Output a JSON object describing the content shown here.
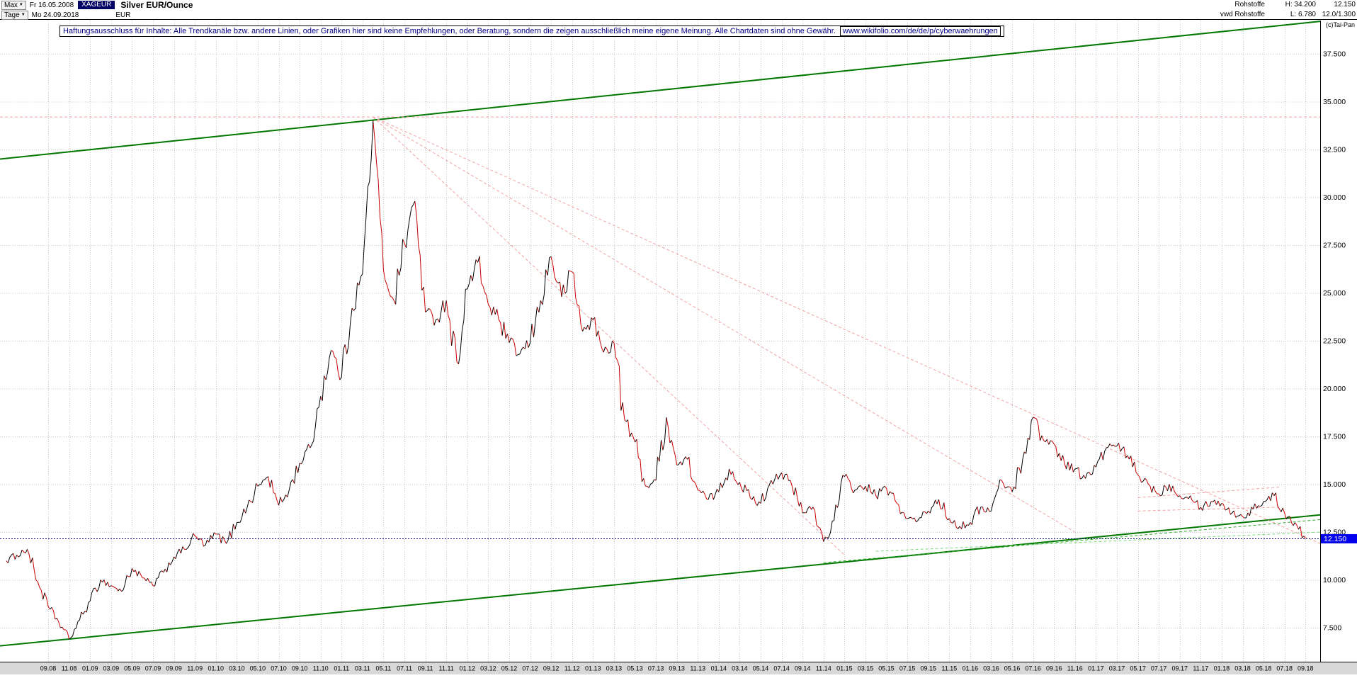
{
  "header": {
    "range_button": "Max",
    "period_button": "Tage",
    "date_from": "Fr 16.05.2008",
    "date_to": "Mo 24.09.2018",
    "symbol": "XAGEUR",
    "currency": "EUR",
    "title": "Silver EUR/Ounce",
    "category": "Rohstoffe",
    "source": "vwd Rohstoffe",
    "high_label": "H: 34.200",
    "low_label": "L: 6.780",
    "last_price": "12.150",
    "change": "12.0/1.300"
  },
  "disclaimer": {
    "text": "Haftungsausschluss für Inhalte: Alle Trendkanäle bzw. andere Linien, oder Grafiken hier sind keine Empfehlungen, oder Beratung, sondern die zeigen ausschließlich meine eigene Meinung. Alle Chartdaten sind ohne Gewähr.",
    "url": "www.wikifolio.com/de/de/p/cyberwaehrungen"
  },
  "watermark": "(c)Tai-Pan",
  "chart_data": {
    "type": "line",
    "title": "Silver EUR/Ounce",
    "symbol": "XAGEUR",
    "unit": "EUR per ounce",
    "x_start": "2008-05",
    "x_end": "2018-09",
    "x_resolution": "monthly approximation of a daily chart",
    "high": 34.2,
    "low": 6.78,
    "last": 12.15,
    "last_label": "12.150",
    "y_axis": {
      "min": 5.7,
      "max": 39.3,
      "ticks": [
        37.5,
        35,
        32.5,
        30,
        27.5,
        25,
        22.5,
        20,
        17.5,
        15,
        12.5,
        10,
        7.5
      ],
      "tick_labels": [
        "37.500",
        "35.000",
        "32.500",
        "30.000",
        "27.500",
        "25.000",
        "22.500",
        "20.000",
        "17.500",
        "15.000",
        "12.500",
        "10.000",
        "7.500"
      ]
    },
    "x_axis": {
      "tick_start_index": 4,
      "tick_step": 2,
      "tick_labels": [
        "09.08",
        "11.08",
        "01.09",
        "03.09",
        "05.09",
        "07.09",
        "09.09",
        "11.09",
        "01.10",
        "03.10",
        "05.10",
        "07.10",
        "09.10",
        "11.10",
        "01.11",
        "03.11",
        "05.11",
        "07.11",
        "09.11",
        "11.11",
        "01.12",
        "03.12",
        "05.12",
        "07.12",
        "09.12",
        "11.12",
        "01.13",
        "03.13",
        "05.13",
        "07.13",
        "09.13",
        "11.13",
        "01.14",
        "03.14",
        "05.14",
        "07.14",
        "09.14",
        "11.14",
        "01.15",
        "03.15",
        "05.15",
        "07.15",
        "09.15",
        "11.15",
        "01.16",
        "03.16",
        "05.16",
        "07.16",
        "09.16",
        "11.16",
        "01.17",
        "03.17",
        "05.17",
        "07.17",
        "09.17",
        "11.17",
        "01.18",
        "03.18",
        "05.18",
        "07.18",
        "09.18"
      ]
    },
    "series": [
      {
        "name": "XAGEUR monthly close (approx, read from chart)",
        "values": [
          11.0,
          11.3,
          11.6,
          9.9,
          8.6,
          7.8,
          6.9,
          7.9,
          8.9,
          10.0,
          9.7,
          9.4,
          10.6,
          10.1,
          9.7,
          10.4,
          11.2,
          11.6,
          12.3,
          11.8,
          12.4,
          11.9,
          13.0,
          13.8,
          14.9,
          15.4,
          13.9,
          14.7,
          16.1,
          16.9,
          19.6,
          22.0,
          20.6,
          24.2,
          26.0,
          34.0,
          26.2,
          24.6,
          27.6,
          29.8,
          24.0,
          23.6,
          24.6,
          21.4,
          25.2,
          26.6,
          24.4,
          23.6,
          22.4,
          21.8,
          22.4,
          24.6,
          26.9,
          24.8,
          26.1,
          23.0,
          23.6,
          21.9,
          22.4,
          18.4,
          17.2,
          14.9,
          15.2,
          18.5,
          16.0,
          16.3,
          14.7,
          14.2,
          14.6,
          15.8,
          15.1,
          14.3,
          14.0,
          15.2,
          15.6,
          14.9,
          13.5,
          13.8,
          12.0,
          13.1,
          15.4,
          14.7,
          14.9,
          14.4,
          14.8,
          14.0,
          13.2,
          13.1,
          13.6,
          14.2,
          13.2,
          12.8,
          13.0,
          13.8,
          13.6,
          15.2,
          14.6,
          16.3,
          18.5,
          17.3,
          17.1,
          16.1,
          15.8,
          15.3,
          15.9,
          16.9,
          17.0,
          16.5,
          15.5,
          15.0,
          14.5,
          15.0,
          14.4,
          14.4,
          13.8,
          14.1,
          14.0,
          13.5,
          13.3,
          13.7,
          14.1,
          14.4,
          13.5,
          13.0,
          12.15
        ]
      }
    ],
    "trendlines": [
      {
        "name": "upper-green-channel",
        "m1": -0.6,
        "p1": 32.0,
        "m2": 125.4,
        "p2": 39.2,
        "color": "#007700",
        "width": 2,
        "dash": ""
      },
      {
        "name": "lower-green-channel",
        "m1": -0.6,
        "p1": 6.55,
        "m2": 125.4,
        "p2": 13.4,
        "color": "#007700",
        "width": 2,
        "dash": ""
      },
      {
        "name": "all-time-high-line",
        "m1": -0.6,
        "p1": 34.2,
        "m2": 125.4,
        "p2": 34.2,
        "color": "#f2a2a2",
        "width": 1,
        "dash": "4 3"
      },
      {
        "name": "red-fan-shallow",
        "m1": 35,
        "p1": 34.2,
        "m2": 125.4,
        "p2": 11.9,
        "color": "#f2a2a2",
        "width": 1,
        "dash": "4 3"
      },
      {
        "name": "red-fan-middle",
        "m1": 35,
        "p1": 34.2,
        "m2": 102,
        "p2": 12.5,
        "color": "#f2a2a2",
        "width": 1,
        "dash": "4 3"
      },
      {
        "name": "red-fan-steep",
        "m1": 35,
        "p1": 34.2,
        "m2": 80,
        "p2": 11.3,
        "color": "#f2a2a2",
        "width": 1,
        "dash": "4 3"
      },
      {
        "name": "green-support-1",
        "m1": 78,
        "p1": 10.9,
        "m2": 125.4,
        "p2": 13.15,
        "color": "#33aa33",
        "width": 1,
        "dash": "4 3"
      },
      {
        "name": "green-support-2",
        "m1": 83,
        "p1": 11.5,
        "m2": 125.4,
        "p2": 12.5,
        "color": "#7ed87e",
        "width": 1,
        "dash": "4 3"
      },
      {
        "name": "red-resistance-1",
        "m1": 108,
        "p1": 14.3,
        "m2": 121.5,
        "p2": 14.85,
        "color": "#f2a2a2",
        "width": 1,
        "dash": "4 3"
      },
      {
        "name": "red-resistance-2",
        "m1": 108,
        "p1": 13.6,
        "m2": 121.5,
        "p2": 13.8,
        "color": "#f2a2a2",
        "width": 1,
        "dash": "4 3"
      },
      {
        "name": "last-price-line",
        "m1": -0.6,
        "p1": 12.15,
        "m2": 125.4,
        "p2": 12.15,
        "color": "#000066",
        "width": 1,
        "dash": "2 2"
      }
    ],
    "colors": {
      "up": "#000000",
      "down": "#cc0000",
      "channel": "#007700",
      "fan": "#f2a2a2",
      "grid": "#c8c8c8",
      "axis_strip_bg": "#d8d8d8",
      "last_price_bg": "#0000ee",
      "last_price_fg": "#ffffff"
    },
    "legend": "none",
    "grid": "dotted, at every labeled tick"
  }
}
